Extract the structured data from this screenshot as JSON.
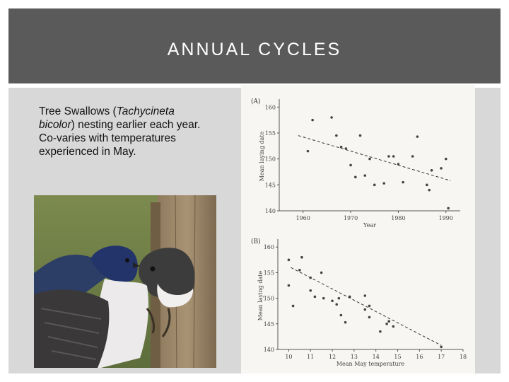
{
  "slide": {
    "title": "ANNUAL CYCLES",
    "body_parts": [
      "Tree Swallows (",
      "Tachycineta bicolor",
      ") nesting earlier each year.  Co-varies with temperatures experienced in May."
    ]
  },
  "photo": {
    "subject": "tree swallows at nest box"
  },
  "colors": {
    "title_band": "#5a5a5a",
    "content_bg": "#d8d8d8",
    "figure_bg": "#f7f6f3",
    "points": "#444444"
  },
  "chart_data": [
    {
      "panel": "(A)",
      "type": "scatter",
      "xlabel": "Year",
      "ylabel": "Mean laying date",
      "xlim": [
        1955,
        1993
      ],
      "ylim": [
        140,
        161
      ],
      "xticks": [
        1960,
        1970,
        1980,
        1990
      ],
      "yticks": [
        140,
        145,
        150,
        155,
        160
      ],
      "tick_labels_x": [
        "1960",
        "1970",
        "1980",
        "1990"
      ],
      "tick_labels_y": [
        "140",
        "145",
        "150",
        "155",
        "160"
      ],
      "trend_line": {
        "style": "dashed",
        "points": [
          [
            1959,
            154.5
          ],
          [
            1991,
            145.8
          ]
        ]
      },
      "points": [
        [
          1961,
          151.5
        ],
        [
          1962,
          157.5
        ],
        [
          1966,
          158
        ],
        [
          1967,
          154.5
        ],
        [
          1968,
          152.3
        ],
        [
          1969,
          152
        ],
        [
          1970,
          148.8
        ],
        [
          1971,
          146.5
        ],
        [
          1972,
          154.5
        ],
        [
          1973,
          146.8
        ],
        [
          1974,
          150
        ],
        [
          1975,
          145
        ],
        [
          1977,
          145.3
        ],
        [
          1978,
          150.5
        ],
        [
          1979,
          150.5
        ],
        [
          1980,
          149
        ],
        [
          1981,
          145.5
        ],
        [
          1983,
          150.5
        ],
        [
          1984,
          154.3
        ],
        [
          1986,
          145
        ],
        [
          1986.5,
          144
        ],
        [
          1987,
          147.8
        ],
        [
          1989,
          148.2
        ],
        [
          1990,
          150
        ],
        [
          1990.5,
          140.5
        ]
      ]
    },
    {
      "panel": "(B)",
      "type": "scatter",
      "xlabel": "Mean May temperature",
      "ylabel": "Mean laying date",
      "xlim": [
        9.5,
        18
      ],
      "ylim": [
        140,
        161
      ],
      "xticks": [
        10,
        11,
        12,
        13,
        14,
        15,
        16,
        17,
        18
      ],
      "yticks": [
        140,
        145,
        150,
        155,
        160
      ],
      "tick_labels_x": [
        "10",
        "11",
        "12",
        "13",
        "14",
        "15",
        "16",
        "17",
        "18"
      ],
      "tick_labels_y": [
        "140",
        "145",
        "150",
        "155",
        "160"
      ],
      "trend_line": {
        "style": "dashed",
        "points": [
          [
            10.1,
            156
          ],
          [
            17,
            140.8
          ]
        ]
      },
      "points": [
        [
          10,
          157.5
        ],
        [
          10,
          152.5
        ],
        [
          10.2,
          148.5
        ],
        [
          10.5,
          155.5
        ],
        [
          10.6,
          158
        ],
        [
          11,
          154
        ],
        [
          11,
          151.5
        ],
        [
          11.2,
          150.3
        ],
        [
          11.5,
          155
        ],
        [
          11.6,
          150
        ],
        [
          12,
          149.5
        ],
        [
          12.2,
          148.8
        ],
        [
          12.3,
          150
        ],
        [
          12.4,
          146.7
        ],
        [
          12.6,
          145.3
        ],
        [
          12.8,
          150.3
        ],
        [
          13.5,
          150.5
        ],
        [
          13.5,
          147.8
        ],
        [
          13.7,
          148.5
        ],
        [
          13.7,
          146.3
        ],
        [
          14.2,
          143.5
        ],
        [
          14.5,
          145
        ],
        [
          14.6,
          145.5
        ],
        [
          14.8,
          144.5
        ],
        [
          17,
          140.5
        ]
      ]
    }
  ]
}
